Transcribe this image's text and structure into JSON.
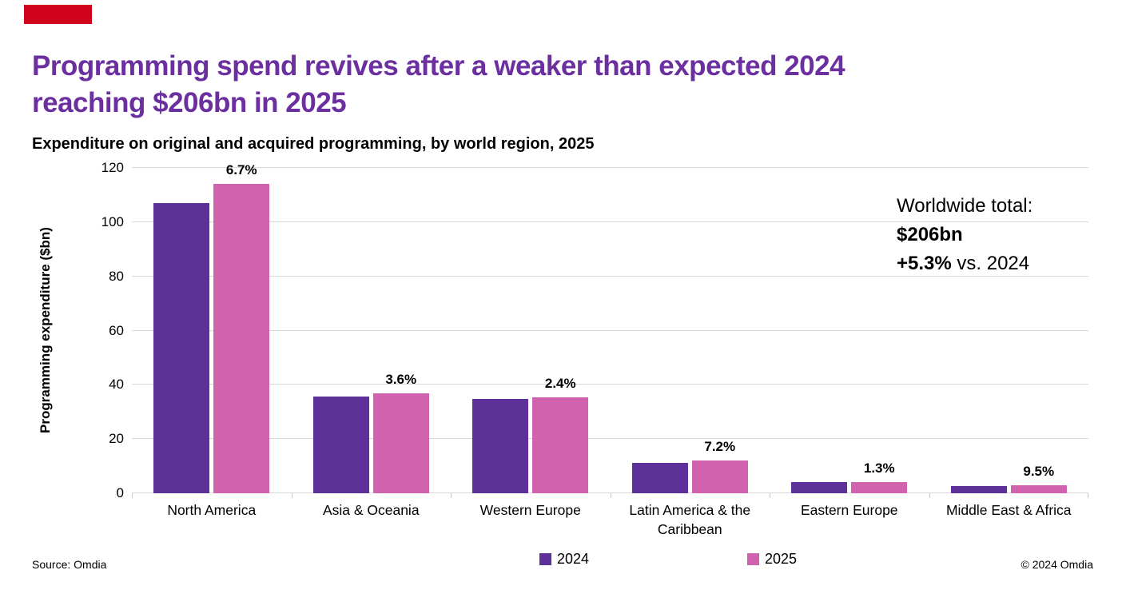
{
  "logo": {
    "color": "#D0021B"
  },
  "title": {
    "line1": "Programming spend revives after a weaker than expected 2024",
    "line2": "reaching $206bn in 2025",
    "color": "#6B2FA0"
  },
  "annotation": {
    "line1": "Worldwide total:",
    "line2": "$206bn",
    "line3_bold": "+5.3%",
    "line3_rest": " vs. 2024"
  },
  "footer": {
    "source": "Source: Omdia",
    "copyright": "© 2024 Omdia"
  },
  "chart_data": {
    "type": "bar",
    "title": "Expenditure on original and acquired programming, by world region, 2025",
    "ylabel": "Programming expenditure ($bn)",
    "ylim": [
      0,
      120
    ],
    "ytick_step": 20,
    "grid": true,
    "legend_position": "bottom",
    "gridline_color": "#D9D9D9",
    "categories": [
      "North America",
      "Asia & Oceania",
      "Western Europe",
      "Latin America & the Caribbean",
      "Eastern Europe",
      "Middle East & Africa"
    ],
    "series": [
      {
        "name": "2024",
        "color": "#5E3199",
        "values": [
          107,
          35.6,
          34.7,
          11.3,
          4.2,
          2.8
        ]
      },
      {
        "name": "2025",
        "color": "#D163AE",
        "values": [
          114.2,
          36.9,
          35.5,
          12.1,
          4.25,
          3.1
        ]
      }
    ],
    "growth_labels": [
      "6.7%",
      "3.6%",
      "2.4%",
      "7.2%",
      "1.3%",
      "9.5%"
    ]
  }
}
